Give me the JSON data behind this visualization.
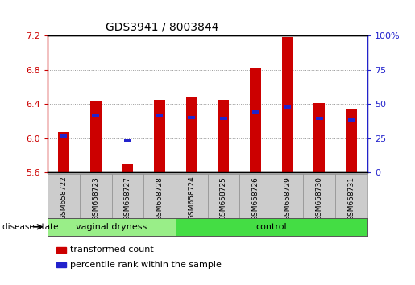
{
  "title": "GDS3941 / 8003844",
  "samples": [
    "GSM658722",
    "GSM658723",
    "GSM658727",
    "GSM658728",
    "GSM658724",
    "GSM658725",
    "GSM658726",
    "GSM658729",
    "GSM658730",
    "GSM658731"
  ],
  "bar_values": [
    6.07,
    6.43,
    5.7,
    6.45,
    6.48,
    6.45,
    6.83,
    7.18,
    6.41,
    6.35
  ],
  "blue_values": [
    6.02,
    6.27,
    5.97,
    6.27,
    6.24,
    6.23,
    6.31,
    6.36,
    6.23,
    6.21
  ],
  "ymin": 5.6,
  "ymax": 7.2,
  "yticks": [
    5.6,
    6.0,
    6.4,
    6.8,
    7.2
  ],
  "right_yticks": [
    0,
    25,
    50,
    75,
    100
  ],
  "bar_color": "#cc0000",
  "blue_color": "#2222cc",
  "bar_width": 0.35,
  "disease_groups": [
    {
      "label": "vaginal dryness",
      "start": 0,
      "end": 4,
      "color": "#99ee88"
    },
    {
      "label": "control",
      "start": 4,
      "end": 10,
      "color": "#44dd44"
    }
  ],
  "legend_items": [
    {
      "label": "transformed count",
      "color": "#cc0000"
    },
    {
      "label": "percentile rank within the sample",
      "color": "#2222cc"
    }
  ],
  "left_axis_color": "#cc0000",
  "right_axis_color": "#2222cc",
  "grid_color": "#999999",
  "disease_state_label": "disease state",
  "sample_box_color": "#cccccc",
  "sample_box_line_color": "#888888"
}
